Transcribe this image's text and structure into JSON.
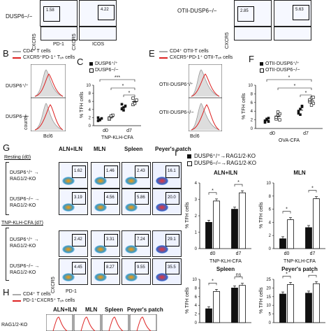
{
  "top": {
    "row_labels": [
      "DUSP6−/−",
      "OTII-DUSP6−/−"
    ],
    "axis": [
      "CXCR5",
      "PD-1",
      "CXCR5",
      "ICOS",
      "CXCR5"
    ],
    "gate_values": [
      "1.58",
      "4.22",
      "2.85",
      "5.63"
    ],
    "asterisk": "*"
  },
  "panels": {
    "B": {
      "letter": "B",
      "legend": [
        "CD4⁺ T cells",
        "CXCR5⁺PD-1⁺ Tₓₕ cells"
      ],
      "rows": [
        "DUSP6⁺/⁺",
        "DUSP6−/−"
      ],
      "xlabel": "Bcl6",
      "ylabel": "counts"
    },
    "C": {
      "letter": "C",
      "legend": [
        "DUSP6⁺/⁺",
        "DUSP6−/−"
      ],
      "ylabel": "% Tₓₕ cells",
      "xlabel": "TNP-KLH-CFA"
    },
    "E": {
      "letter": "E",
      "legend": [
        "CD4⁺ OTII-T cells",
        "CXCR5⁺PD-1⁺ OTII-Tₓₕ cells"
      ],
      "rows": [
        "OTII-DUSP6⁺/⁺",
        "OTII-DUSP6−/−"
      ],
      "xlabel": "Bcl6"
    },
    "F": {
      "letter": "F",
      "legend": [
        "OTII-DUSP6⁺/⁺",
        "OTII-DUSP6−/−"
      ],
      "ylabel": "% Tₓₕ cells",
      "xlabel": "OVA-CFA"
    },
    "G": {
      "letter": "G",
      "col_headers": [
        "ALN+ILN",
        "MLN",
        "Spleen",
        "Peyer's patch"
      ],
      "resting": "Resting (d0)",
      "immunized": "TNP-KLH-CFA (d7)",
      "row_labels": [
        "DUSP6⁺/⁺ →",
        "RAG1/2-KO",
        "DUSP6−/− →",
        "RAG1/2-KO"
      ],
      "values": [
        [
          "1.62",
          "1.46",
          "2.43",
          "16.1"
        ],
        [
          "3.19",
          "4.56",
          "5.86",
          "20.0"
        ],
        [
          "2.42",
          "3.31",
          "7.24",
          "29.1"
        ],
        [
          "4.45",
          "8.27",
          "9.55",
          "35.5"
        ]
      ],
      "xlabel": "PD-1",
      "ylabel": "CXCR5"
    },
    "H": {
      "letter": "H",
      "legend": [
        "CD4⁺ T cells",
        "PD-1⁺CXCR5⁺ Tₓₕ cells"
      ],
      "col_headers": [
        "ALN+ILN",
        "MLN",
        "Spleen",
        "Peyer's patch"
      ],
      "row": "RAG1/2-KO"
    },
    "I": {
      "letter": "I",
      "legend": [
        "DUSP6⁺/⁺→RAG1/2-KO",
        "DUSP6−/−→RAG1/2-KO"
      ],
      "sig": [
        "*",
        "*",
        "ns",
        "***"
      ]
    }
  },
  "chart_data": [
    {
      "type": "scatter",
      "panel": "C",
      "categories": [
        "d0",
        "d7"
      ],
      "ylabel": "% TFH cells",
      "xlabel": "TNP-KLH-CFA",
      "ylim": [
        0,
        10
      ],
      "yticks": [
        0,
        2,
        4,
        6,
        8,
        10
      ],
      "series": [
        {
          "name": "DUSP6+/+",
          "x": "dot-filled",
          "values": {
            "d0": [
              1.2,
              1.5,
              1.8,
              2.0,
              1.4
            ],
            "d7": [
              4.1,
              4.5,
              4.9,
              5.3,
              3.8
            ]
          }
        },
        {
          "name": "DUSP6-/-",
          "x": "dot-open",
          "values": {
            "d0": [
              1.6,
              2.2,
              2.6,
              1.9,
              2.4
            ],
            "d7": [
              5.2,
              5.8,
              6.3,
              6.8,
              5.5
            ]
          }
        }
      ],
      "sig": [
        "*",
        "***",
        "*"
      ]
    },
    {
      "type": "scatter",
      "panel": "F",
      "categories": [
        "d0",
        "d7"
      ],
      "ylabel": "% TFH cells",
      "xlabel": "OVA-CFA",
      "ylim": [
        0,
        10
      ],
      "yticks": [
        0,
        2,
        4,
        6,
        8,
        10
      ],
      "series": [
        {
          "name": "OTII-DUSP6+/+",
          "values": {
            "d0": [
              1.4,
              2.0,
              2.4,
              1.8,
              2.2,
              1.6
            ],
            "d7": [
              3.5,
              4.5,
              5.2,
              4.0,
              3.2,
              5.0
            ]
          }
        },
        {
          "name": "OTII-DUSP6-/-",
          "values": {
            "d0": [
              2.2,
              3.0,
              3.4,
              2.6,
              3.8,
              2.0
            ],
            "d7": [
              6.2,
              7.0,
              5.8,
              6.6,
              5.4,
              7.2
            ]
          }
        }
      ],
      "sig": [
        "*",
        "*",
        "*"
      ]
    },
    {
      "type": "bar",
      "panel": "I",
      "title": "ALN+ILN",
      "categories": [
        "d0",
        "d7"
      ],
      "xlabel": "TNP-KLH-CFA",
      "ylabel": "% TFH cells",
      "ylim": [
        0,
        4
      ],
      "yticks": [
        0,
        1,
        2,
        3,
        4
      ],
      "series": [
        {
          "name": "DUSP6+/+→RAG1/2-KO",
          "values": [
            1.6,
            2.4
          ]
        },
        {
          "name": "DUSP6-/-→RAG1/2-KO",
          "values": [
            2.9,
            3.4
          ]
        }
      ],
      "sig": [
        "*",
        "*"
      ]
    },
    {
      "type": "bar",
      "panel": "I",
      "title": "MLN",
      "categories": [
        "d0",
        "d7"
      ],
      "xlabel": "TNP-KLH-CFA",
      "ylabel": "% TFH cells",
      "ylim": [
        0,
        10
      ],
      "yticks": [
        0,
        2,
        4,
        6,
        8,
        10
      ],
      "series": [
        {
          "name": "DUSP6+/+→RAG1/2-KO",
          "values": [
            1.5,
            3.2
          ]
        },
        {
          "name": "DUSP6-/-→RAG1/2-KO",
          "values": [
            4.4,
            7.6
          ]
        }
      ],
      "sig": [
        "*",
        "*"
      ]
    },
    {
      "type": "bar",
      "panel": "I",
      "title": "Spleen",
      "categories": [
        "d0",
        "d7"
      ],
      "xlabel": "",
      "ylabel": "% TFH cells",
      "ylim": [
        0,
        10
      ],
      "yticks": [
        0,
        2,
        4,
        6,
        8,
        10
      ],
      "series": [
        {
          "name": "DUSP6+/+→RAG1/2-KO",
          "values": [
            3.2,
            8.0
          ]
        },
        {
          "name": "DUSP6-/-→RAG1/2-KO",
          "values": [
            7.2,
            8.6
          ]
        }
      ],
      "sig": [
        "*",
        "ns"
      ]
    },
    {
      "type": "bar",
      "panel": "I",
      "title": "Peyer's patch",
      "categories": [
        "d0",
        "d7"
      ],
      "xlabel": "",
      "ylabel": "% TFH cells",
      "ylim": [
        0,
        25
      ],
      "yticks": [
        0,
        5,
        10,
        15,
        20,
        25
      ],
      "series": [
        {
          "name": "DUSP6+/+→RAG1/2-KO",
          "values": [
            16.5,
            17.0
          ]
        },
        {
          "name": "DUSP6-/-→RAG1/2-KO",
          "values": [
            22.0,
            22.5
          ]
        }
      ],
      "sig": [
        "*",
        "*"
      ]
    }
  ]
}
